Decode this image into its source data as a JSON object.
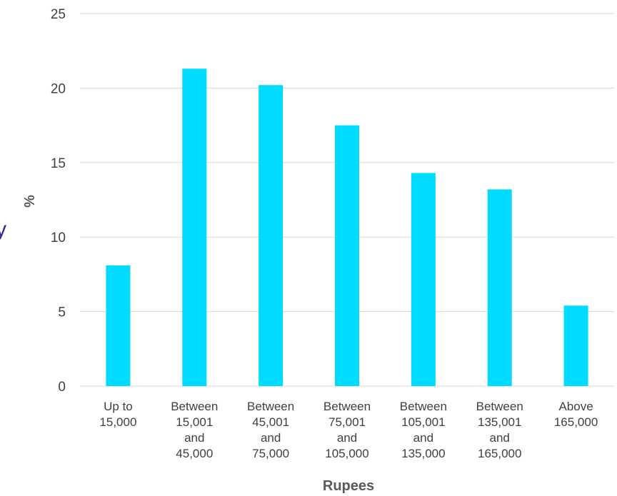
{
  "chart_data": {
    "type": "bar",
    "title": "",
    "xlabel": "Rupees",
    "ylabel": "%",
    "ylim": [
      0,
      25
    ],
    "yticks": [
      0,
      5,
      10,
      15,
      20,
      25
    ],
    "grid": true,
    "legend": "none",
    "bar_color": "#00dcff",
    "categories": [
      [
        "Up to",
        "15,000"
      ],
      [
        "Between",
        "15,001",
        "and",
        "45,000"
      ],
      [
        "Between",
        "45,001",
        "and",
        "75,000"
      ],
      [
        "Between",
        "75,001",
        "and",
        "105,000"
      ],
      [
        "Between",
        "105,001",
        "and",
        "135,000"
      ],
      [
        "Between",
        "135,001",
        "and",
        "165,000"
      ],
      [
        "Above",
        "165,000"
      ]
    ],
    "values": [
      8.1,
      21.3,
      20.2,
      17.5,
      14.3,
      13.2,
      5.4
    ]
  },
  "page": {
    "edge_glyph": "y",
    "colors": {
      "grid": "#d9d9d9",
      "text": "#404040",
      "edge_glyph": "#3d1f8f"
    }
  }
}
